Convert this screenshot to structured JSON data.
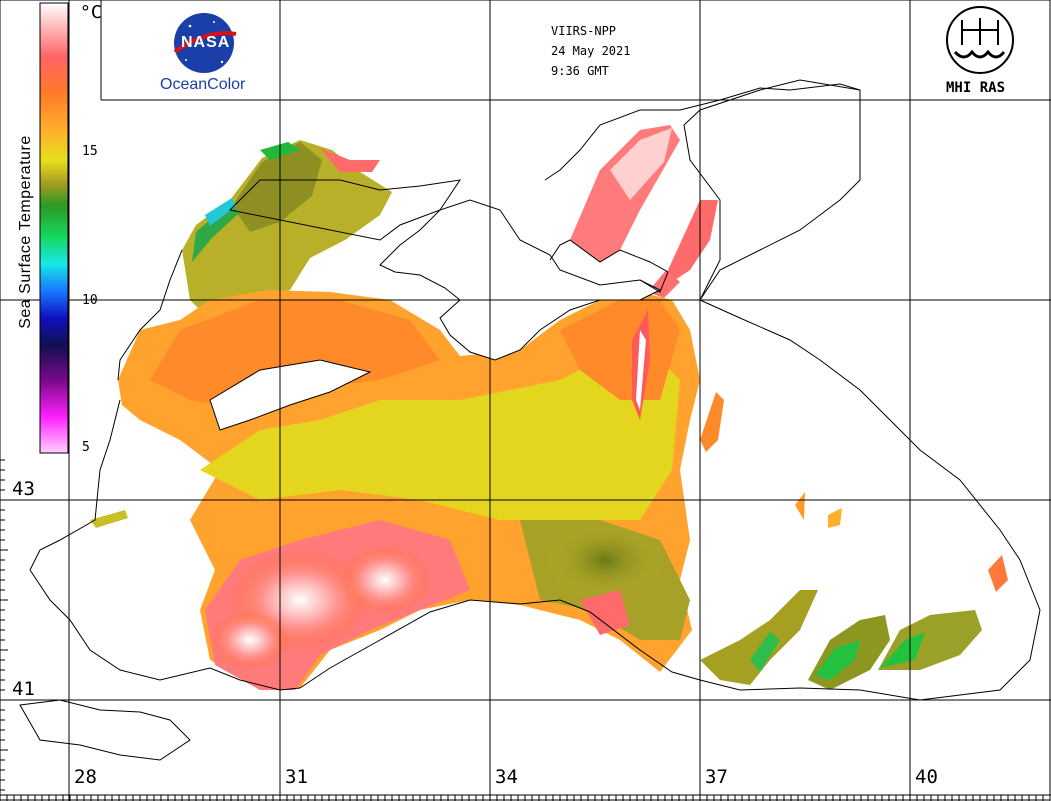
{
  "header": {
    "satellite": "VIIRS-NPP",
    "date": "24 May 2021",
    "time": "9:36 GMT"
  },
  "logos": {
    "nasa_word": "NASA",
    "oceancolor": "OceanColor",
    "institute": "MHI RAS"
  },
  "legend": {
    "title": "Sea Surface Temperature",
    "unit": "°C",
    "ticks": [
      "15",
      "10",
      "5"
    ],
    "colors": [
      "#ffffff",
      "#ff8080",
      "#ff6a2a",
      "#ffa830",
      "#e8e020",
      "#a8a020",
      "#3cb028",
      "#10d060",
      "#18e0f0",
      "#2040ff",
      "#200080",
      "#801090",
      "#ff30ff",
      "#ffb0ff"
    ]
  },
  "grid": {
    "latitudes": [
      "43",
      "41"
    ],
    "longitudes": [
      "28",
      "31",
      "34",
      "37",
      "40"
    ]
  },
  "colors": {
    "land_fill": "#ffffff",
    "coast": "#000000",
    "grid_line": "#000000"
  }
}
